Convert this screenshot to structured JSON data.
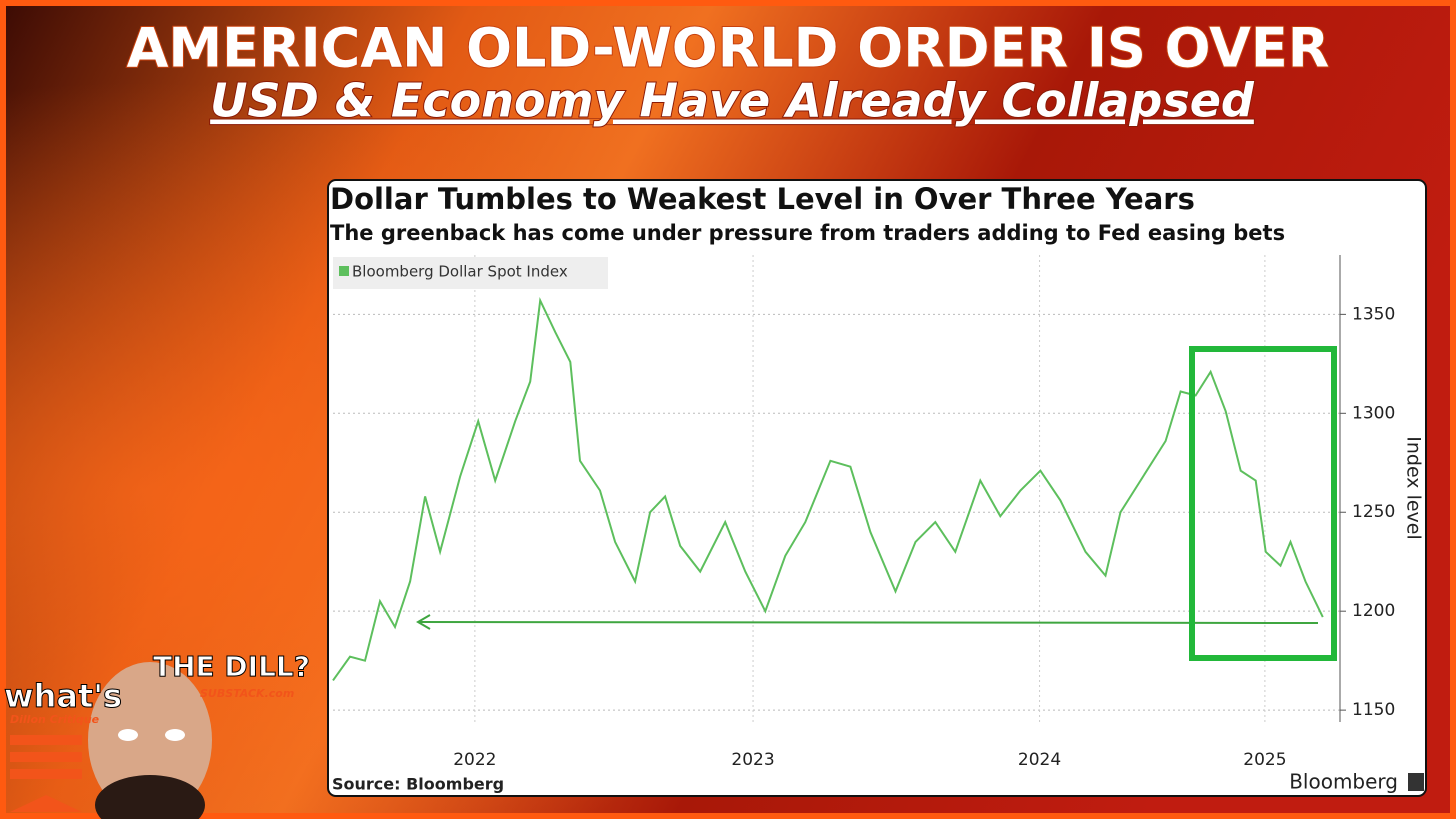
{
  "header": {
    "title": "AMERICAN OLD-WORLD ORDER IS OVER",
    "subtitle": "USD & Economy Have Already Collapsed"
  },
  "chart_data": {
    "type": "line",
    "title": "Dollar Tumbles to Weakest Level in Over Three Years",
    "subtitle": "The greenback has come under pressure from traders adding to Fed easing bets",
    "y_label": "Index level",
    "source": "Source: Bloomberg",
    "brand": "Bloomberg",
    "x": [
      2022.0,
      2022.061,
      2022.115,
      2022.169,
      2022.223,
      2022.277,
      2022.331,
      2022.385,
      2022.457,
      2022.522,
      2022.583,
      2022.655,
      2022.709,
      2022.745,
      2022.799,
      2022.853,
      2022.888,
      2022.96,
      2023.014,
      2023.086,
      2023.14,
      2023.194,
      2023.248,
      2023.32,
      2023.41,
      2023.482,
      2023.554,
      2023.626,
      2023.698,
      2023.788,
      2023.86,
      2023.932,
      2024.022,
      2024.094,
      2024.165,
      2024.237,
      2024.327,
      2024.399,
      2024.471,
      2024.543,
      2024.615,
      2024.705,
      2024.777,
      2024.831,
      2024.903,
      2024.993,
      2025.047,
      2025.101,
      2025.155,
      2025.209,
      2025.263,
      2025.317,
      2025.353,
      2025.406,
      2025.442,
      2025.496,
      2025.558
    ],
    "series": [
      {
        "name": "Bloomberg Dollar Spot Index",
        "color": "#5dbf5d",
        "values": [
          1165,
          1177,
          1175,
          1205,
          1192,
          1215,
          1258,
          1230,
          1268,
          1296,
          1266,
          1296,
          1316,
          1357,
          1341,
          1326,
          1276,
          1261,
          1235,
          1215,
          1250,
          1258,
          1233,
          1220,
          1245,
          1220,
          1200,
          1228,
          1245,
          1276,
          1273,
          1240,
          1210,
          1235,
          1245,
          1230,
          1266,
          1248,
          1261,
          1271,
          1256,
          1230,
          1218,
          1250,
          1266,
          1286,
          1311,
          1309,
          1321,
          1301,
          1271,
          1266,
          1230,
          1223,
          1235,
          1215,
          1197
        ]
      }
    ],
    "xlim": [
      2022.0,
      2025.62
    ],
    "ylim": [
      1144,
      1380
    ],
    "xticks": [
      {
        "value": 2022.51,
        "label": "2022"
      },
      {
        "value": 2023.51,
        "label": "2023"
      },
      {
        "value": 2024.54,
        "label": "2024"
      },
      {
        "value": 2025.35,
        "label": "2025"
      }
    ],
    "yticks": [
      1150,
      1200,
      1250,
      1300,
      1350
    ],
    "grid": true,
    "legend": "top-left"
  },
  "branding": {
    "top": "THE DILL?",
    "left": "what's",
    "site": "SUBSTACK.com",
    "name": "Dillon Critique"
  }
}
